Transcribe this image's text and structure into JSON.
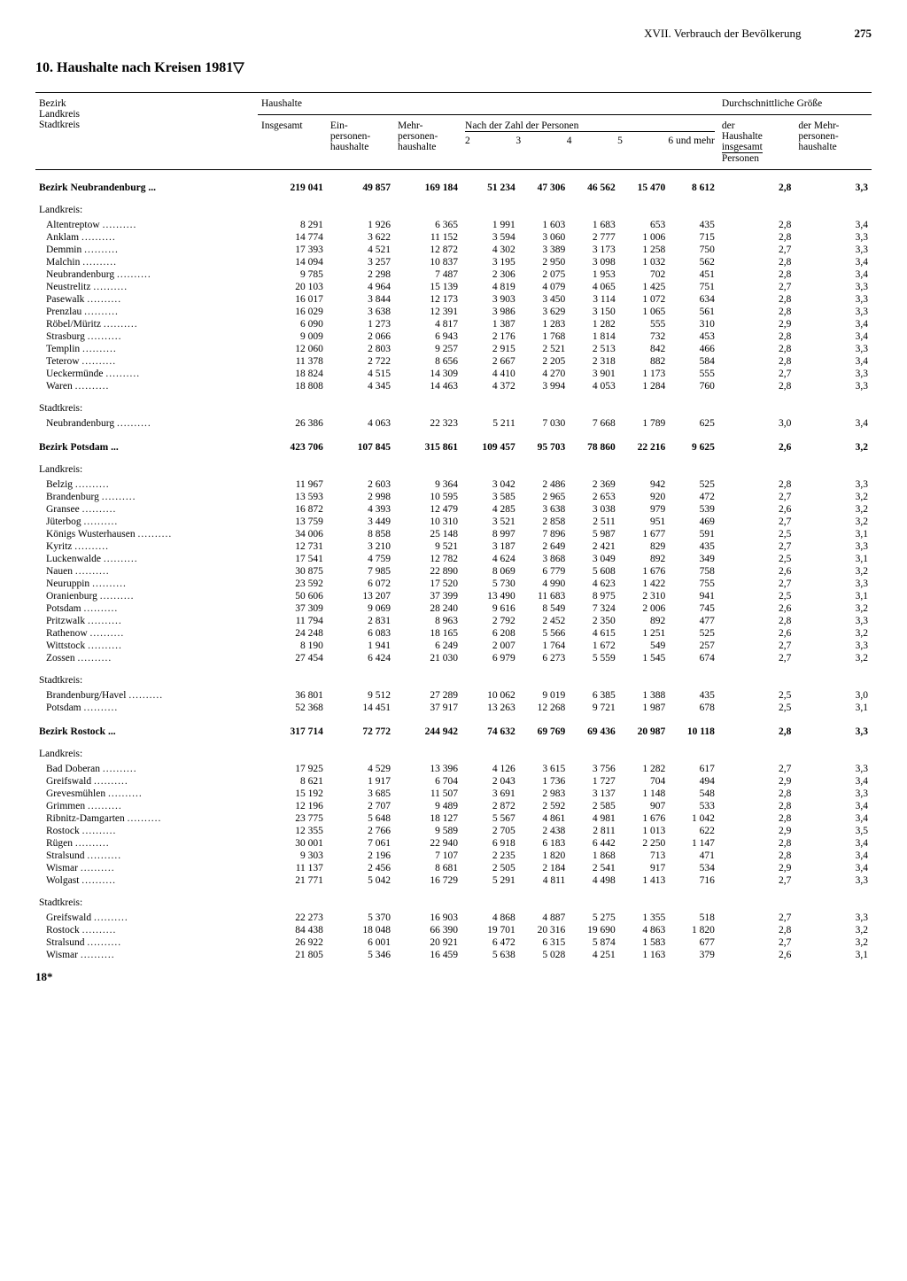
{
  "header": {
    "section": "XVII. Verbrauch der Bevölkerung",
    "page": "275"
  },
  "title": "10. Haushalte nach Kreisen 1981▽",
  "columns": {
    "stub1": "Bezirk",
    "stub2": "Landkreis",
    "stub3": "Stadtkreis",
    "haushalte": "Haushalte",
    "insgesamt": "Insgesamt",
    "ein": "Ein-",
    "mehr": "Mehr-",
    "personen1": "personen-",
    "personen2": "personen-",
    "haushalte2": "haushalte",
    "haushalte3": "haushalte",
    "nach": "Nach der Zahl der Personen",
    "c2": "2",
    "c3": "3",
    "c4": "4",
    "c5": "5",
    "c6": "6 und mehr",
    "avg": "Durchschnittliche Größe",
    "avg1a": "der",
    "avg1b": "Haushalte",
    "avg1c": "insgesamt",
    "avg2a": "der Mehr-",
    "avg2b": "personen-",
    "avg2c": "haushalte",
    "personen": "Personen"
  },
  "footer": "18*",
  "groups": [
    {
      "bezirk": {
        "name": "Bezirk Neubrandenburg",
        "row": [
          "219 041",
          "49 857",
          "169 184",
          "51 234",
          "47 306",
          "46 562",
          "15 470",
          "8 612",
          "2,8",
          "3,3"
        ]
      },
      "landkreis_label": "Landkreis:",
      "landkreis": [
        {
          "name": "Altentreptow",
          "row": [
            "8 291",
            "1 926",
            "6 365",
            "1 991",
            "1 603",
            "1 683",
            "653",
            "435",
            "2,8",
            "3,4"
          ]
        },
        {
          "name": "Anklam",
          "row": [
            "14 774",
            "3 622",
            "11 152",
            "3 594",
            "3 060",
            "2 777",
            "1 006",
            "715",
            "2,8",
            "3,3"
          ]
        },
        {
          "name": "Demmin",
          "row": [
            "17 393",
            "4 521",
            "12 872",
            "4 302",
            "3 389",
            "3 173",
            "1 258",
            "750",
            "2,7",
            "3,3"
          ]
        },
        {
          "name": "Malchin",
          "row": [
            "14 094",
            "3 257",
            "10 837",
            "3 195",
            "2 950",
            "3 098",
            "1 032",
            "562",
            "2,8",
            "3,4"
          ]
        },
        {
          "name": "Neubrandenburg",
          "row": [
            "9 785",
            "2 298",
            "7 487",
            "2 306",
            "2 075",
            "1 953",
            "702",
            "451",
            "2,8",
            "3,4"
          ]
        },
        {
          "name": "Neustrelitz",
          "row": [
            "20 103",
            "4 964",
            "15 139",
            "4 819",
            "4 079",
            "4 065",
            "1 425",
            "751",
            "2,7",
            "3,3"
          ]
        },
        {
          "name": "Pasewalk",
          "row": [
            "16 017",
            "3 844",
            "12 173",
            "3 903",
            "3 450",
            "3 114",
            "1 072",
            "634",
            "2,8",
            "3,3"
          ]
        },
        {
          "name": "Prenzlau",
          "row": [
            "16 029",
            "3 638",
            "12 391",
            "3 986",
            "3 629",
            "3 150",
            "1 065",
            "561",
            "2,8",
            "3,3"
          ]
        },
        {
          "name": "Röbel/Müritz",
          "row": [
            "6 090",
            "1 273",
            "4 817",
            "1 387",
            "1 283",
            "1 282",
            "555",
            "310",
            "2,9",
            "3,4"
          ]
        },
        {
          "name": "Strasburg",
          "row": [
            "9 009",
            "2 066",
            "6 943",
            "2 176",
            "1 768",
            "1 814",
            "732",
            "453",
            "2,8",
            "3,4"
          ]
        },
        {
          "name": "Templin",
          "row": [
            "12 060",
            "2 803",
            "9 257",
            "2 915",
            "2 521",
            "2 513",
            "842",
            "466",
            "2,8",
            "3,3"
          ]
        },
        {
          "name": "Teterow",
          "row": [
            "11 378",
            "2 722",
            "8 656",
            "2 667",
            "2 205",
            "2 318",
            "882",
            "584",
            "2,8",
            "3,4"
          ]
        },
        {
          "name": "Ueckermünde",
          "row": [
            "18 824",
            "4 515",
            "14 309",
            "4 410",
            "4 270",
            "3 901",
            "1 173",
            "555",
            "2,7",
            "3,3"
          ]
        },
        {
          "name": "Waren",
          "row": [
            "18 808",
            "4 345",
            "14 463",
            "4 372",
            "3 994",
            "4 053",
            "1 284",
            "760",
            "2,8",
            "3,3"
          ]
        }
      ],
      "stadtkreis_label": "Stadtkreis:",
      "stadtkreis": [
        {
          "name": "Neubrandenburg",
          "row": [
            "26 386",
            "4 063",
            "22 323",
            "5 211",
            "7 030",
            "7 668",
            "1 789",
            "625",
            "3,0",
            "3,4"
          ]
        }
      ]
    },
    {
      "bezirk": {
        "name": "Bezirk Potsdam",
        "row": [
          "423 706",
          "107 845",
          "315 861",
          "109 457",
          "95 703",
          "78 860",
          "22 216",
          "9 625",
          "2,6",
          "3,2"
        ]
      },
      "landkreis_label": "Landkreis:",
      "landkreis": [
        {
          "name": "Belzig",
          "row": [
            "11 967",
            "2 603",
            "9 364",
            "3 042",
            "2 486",
            "2 369",
            "942",
            "525",
            "2,8",
            "3,3"
          ]
        },
        {
          "name": "Brandenburg",
          "row": [
            "13 593",
            "2 998",
            "10 595",
            "3 585",
            "2 965",
            "2 653",
            "920",
            "472",
            "2,7",
            "3,2"
          ]
        },
        {
          "name": "Gransee",
          "row": [
            "16 872",
            "4 393",
            "12 479",
            "4 285",
            "3 638",
            "3 038",
            "979",
            "539",
            "2,6",
            "3,2"
          ]
        },
        {
          "name": "Jüterbog",
          "row": [
            "13 759",
            "3 449",
            "10 310",
            "3 521",
            "2 858",
            "2 511",
            "951",
            "469",
            "2,7",
            "3,2"
          ]
        },
        {
          "name": "Königs Wusterhausen",
          "row": [
            "34 006",
            "8 858",
            "25 148",
            "8 997",
            "7 896",
            "5 987",
            "1 677",
            "591",
            "2,5",
            "3,1"
          ]
        },
        {
          "name": "Kyritz",
          "row": [
            "12 731",
            "3 210",
            "9 521",
            "3 187",
            "2 649",
            "2 421",
            "829",
            "435",
            "2,7",
            "3,3"
          ]
        },
        {
          "name": "Luckenwalde",
          "row": [
            "17 541",
            "4 759",
            "12 782",
            "4 624",
            "3 868",
            "3 049",
            "892",
            "349",
            "2,5",
            "3,1"
          ]
        },
        {
          "name": "Nauen",
          "row": [
            "30 875",
            "7 985",
            "22 890",
            "8 069",
            "6 779",
            "5 608",
            "1 676",
            "758",
            "2,6",
            "3,2"
          ]
        },
        {
          "name": "Neuruppin",
          "row": [
            "23 592",
            "6 072",
            "17 520",
            "5 730",
            "4 990",
            "4 623",
            "1 422",
            "755",
            "2,7",
            "3,3"
          ]
        },
        {
          "name": "Oranienburg",
          "row": [
            "50 606",
            "13 207",
            "37 399",
            "13 490",
            "11 683",
            "8 975",
            "2 310",
            "941",
            "2,5",
            "3,1"
          ]
        },
        {
          "name": "Potsdam",
          "row": [
            "37 309",
            "9 069",
            "28 240",
            "9 616",
            "8 549",
            "7 324",
            "2 006",
            "745",
            "2,6",
            "3,2"
          ]
        },
        {
          "name": "Pritzwalk",
          "row": [
            "11 794",
            "2 831",
            "8 963",
            "2 792",
            "2 452",
            "2 350",
            "892",
            "477",
            "2,8",
            "3,3"
          ]
        },
        {
          "name": "Rathenow",
          "row": [
            "24 248",
            "6 083",
            "18 165",
            "6 208",
            "5 566",
            "4 615",
            "1 251",
            "525",
            "2,6",
            "3,2"
          ]
        },
        {
          "name": "Wittstock",
          "row": [
            "8 190",
            "1 941",
            "6 249",
            "2 007",
            "1 764",
            "1 672",
            "549",
            "257",
            "2,7",
            "3,3"
          ]
        },
        {
          "name": "Zossen",
          "row": [
            "27 454",
            "6 424",
            "21 030",
            "6 979",
            "6 273",
            "5 559",
            "1 545",
            "674",
            "2,7",
            "3,2"
          ]
        }
      ],
      "stadtkreis_label": "Stadtkreis:",
      "stadtkreis": [
        {
          "name": "Brandenburg/Havel",
          "row": [
            "36 801",
            "9 512",
            "27 289",
            "10 062",
            "9 019",
            "6 385",
            "1 388",
            "435",
            "2,5",
            "3,0"
          ]
        },
        {
          "name": "Potsdam",
          "row": [
            "52 368",
            "14 451",
            "37 917",
            "13 263",
            "12 268",
            "9 721",
            "1 987",
            "678",
            "2,5",
            "3,1"
          ]
        }
      ]
    },
    {
      "bezirk": {
        "name": "Bezirk Rostock",
        "row": [
          "317 714",
          "72 772",
          "244 942",
          "74 632",
          "69 769",
          "69 436",
          "20 987",
          "10 118",
          "2,8",
          "3,3"
        ]
      },
      "landkreis_label": "Landkreis:",
      "landkreis": [
        {
          "name": "Bad Doberan",
          "row": [
            "17 925",
            "4 529",
            "13 396",
            "4 126",
            "3 615",
            "3 756",
            "1 282",
            "617",
            "2,7",
            "3,3"
          ]
        },
        {
          "name": "Greifswald",
          "row": [
            "8 621",
            "1 917",
            "6 704",
            "2 043",
            "1 736",
            "1 727",
            "704",
            "494",
            "2,9",
            "3,4"
          ]
        },
        {
          "name": "Grevesmühlen",
          "row": [
            "15 192",
            "3 685",
            "11 507",
            "3 691",
            "2 983",
            "3 137",
            "1 148",
            "548",
            "2,8",
            "3,3"
          ]
        },
        {
          "name": "Grimmen",
          "row": [
            "12 196",
            "2 707",
            "9 489",
            "2 872",
            "2 592",
            "2 585",
            "907",
            "533",
            "2,8",
            "3,4"
          ]
        },
        {
          "name": "Ribnitz-Damgarten",
          "row": [
            "23 775",
            "5 648",
            "18 127",
            "5 567",
            "4 861",
            "4 981",
            "1 676",
            "1 042",
            "2,8",
            "3,4"
          ]
        },
        {
          "name": "Rostock",
          "row": [
            "12 355",
            "2 766",
            "9 589",
            "2 705",
            "2 438",
            "2 811",
            "1 013",
            "622",
            "2,9",
            "3,5"
          ]
        },
        {
          "name": "Rügen",
          "row": [
            "30 001",
            "7 061",
            "22 940",
            "6 918",
            "6 183",
            "6 442",
            "2 250",
            "1 147",
            "2,8",
            "3,4"
          ]
        },
        {
          "name": "Stralsund",
          "row": [
            "9 303",
            "2 196",
            "7 107",
            "2 235",
            "1 820",
            "1 868",
            "713",
            "471",
            "2,8",
            "3,4"
          ]
        },
        {
          "name": "Wismar",
          "row": [
            "11 137",
            "2 456",
            "8 681",
            "2 505",
            "2 184",
            "2 541",
            "917",
            "534",
            "2,9",
            "3,4"
          ]
        },
        {
          "name": "Wolgast",
          "row": [
            "21 771",
            "5 042",
            "16 729",
            "5 291",
            "4 811",
            "4 498",
            "1 413",
            "716",
            "2,7",
            "3,3"
          ]
        }
      ],
      "stadtkreis_label": "Stadtkreis:",
      "stadtkreis": [
        {
          "name": "Greifswald",
          "row": [
            "22 273",
            "5 370",
            "16 903",
            "4 868",
            "4 887",
            "5 275",
            "1 355",
            "518",
            "2,7",
            "3,3"
          ]
        },
        {
          "name": "Rostock",
          "row": [
            "84 438",
            "18 048",
            "66 390",
            "19 701",
            "20 316",
            "19 690",
            "4 863",
            "1 820",
            "2,8",
            "3,2"
          ]
        },
        {
          "name": "Stralsund",
          "row": [
            "26 922",
            "6 001",
            "20 921",
            "6 472",
            "6 315",
            "5 874",
            "1 583",
            "677",
            "2,7",
            "3,2"
          ]
        },
        {
          "name": "Wismar",
          "row": [
            "21 805",
            "5 346",
            "16 459",
            "5 638",
            "5 028",
            "4 251",
            "1 163",
            "379",
            "2,6",
            "3,1"
          ]
        }
      ]
    }
  ]
}
